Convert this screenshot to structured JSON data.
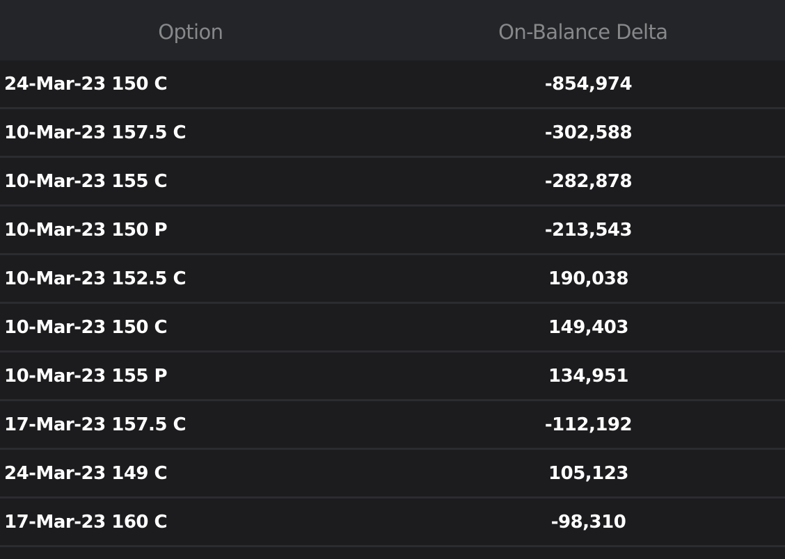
{
  "table": {
    "columns": {
      "option": "Option",
      "delta": "On-Balance Delta"
    },
    "rows": [
      {
        "option": "24-Mar-23 150 C",
        "delta": "-854,974"
      },
      {
        "option": "10-Mar-23 157.5 C",
        "delta": "-302,588"
      },
      {
        "option": "10-Mar-23 155 C",
        "delta": "-282,878"
      },
      {
        "option": "10-Mar-23 150 P",
        "delta": "-213,543"
      },
      {
        "option": "10-Mar-23 152.5 C",
        "delta": "190,038"
      },
      {
        "option": "10-Mar-23 150 C",
        "delta": "149,403"
      },
      {
        "option": "10-Mar-23 155 P",
        "delta": "134,951"
      },
      {
        "option": "17-Mar-23 157.5 C",
        "delta": "-112,192"
      },
      {
        "option": "24-Mar-23 149 C",
        "delta": "105,123"
      },
      {
        "option": "17-Mar-23 160 C",
        "delta": "-98,310"
      }
    ]
  }
}
